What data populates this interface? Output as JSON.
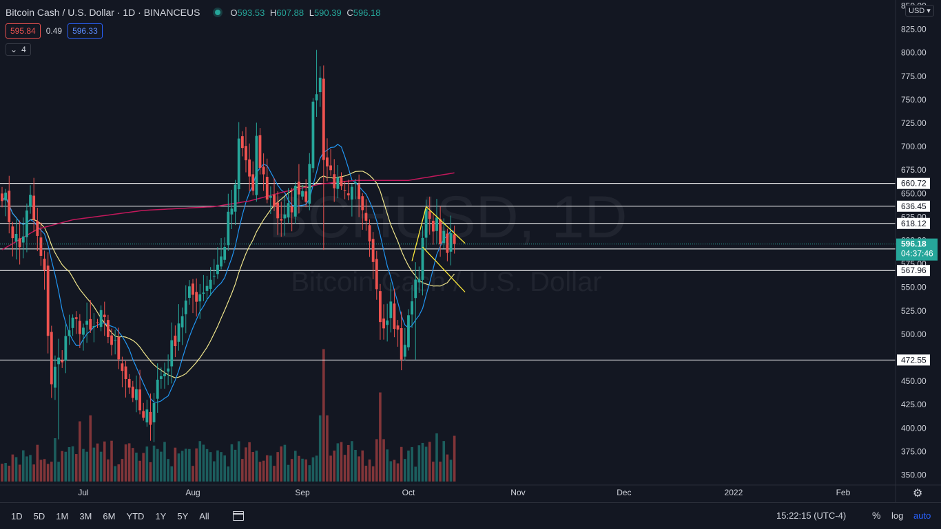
{
  "header": {
    "symbol_title": "Bitcoin Cash / U.S. Dollar · 1D · BINANCEUS",
    "ohlc": [
      {
        "label": "O",
        "value": "593.53"
      },
      {
        "label": "H",
        "value": "607.88"
      },
      {
        "label": "L",
        "value": "590.39"
      },
      {
        "label": "C",
        "value": "596.18"
      }
    ],
    "bid": "595.84",
    "spread": "0.49",
    "ask": "596.33",
    "indicators_count": "4",
    "currency": "USD"
  },
  "watermark": {
    "symbol": "BCHUSD, 1D",
    "name": "Bitcoin Cash / U.S. Dollar"
  },
  "bottom_bar": {
    "timeframes": [
      "1D",
      "5D",
      "1M",
      "3M",
      "6M",
      "YTD",
      "1Y",
      "5Y",
      "All"
    ],
    "clock": "15:22:15 (UTC-4)",
    "percent": "%",
    "log": "log",
    "auto": "auto"
  },
  "colors": {
    "background": "#131722",
    "up": "#26a69a",
    "down": "#ef5350",
    "ma_fast": "#2196f3",
    "ma_slow": "#f0e68c",
    "ma_200": "#c2185b",
    "pattern": "#ffeb3b",
    "level_line": "#ffffff"
  },
  "chart_data": {
    "type": "candlestick",
    "title": "Bitcoin Cash / U.S. Dollar",
    "interval": "1D",
    "exchange": "BINANCEUS",
    "y_axis": {
      "ticks": [
        850,
        825,
        800,
        775,
        750,
        725,
        700,
        675,
        650,
        625,
        600,
        575,
        550,
        525,
        500,
        475,
        450,
        425,
        400,
        375,
        350
      ],
      "ylim": [
        340,
        850
      ],
      "labels": [
        "850.00",
        "825.00",
        "800.00",
        "775.00",
        "750.00",
        "725.00",
        "700.00",
        "675.00",
        "650.00",
        "625.00",
        "600.00",
        "575.00",
        "550.00",
        "525.00",
        "500.00",
        "475.00",
        "450.00",
        "425.00",
        "400.00",
        "375.00",
        "350.00"
      ]
    },
    "x_axis": {
      "labels": [
        "Jul",
        "Aug",
        "Sep",
        "Oct",
        "Nov",
        "Dec",
        "2022",
        "Feb"
      ],
      "label_days": [
        23,
        54,
        85,
        115,
        146,
        176,
        207,
        238
      ]
    },
    "horizontal_levels": [
      660.72,
      636.45,
      618.12,
      590.93,
      567.96,
      472.55
    ],
    "current_price": {
      "value": "596.18",
      "countdown": "04:37:46"
    },
    "price_anchors": [
      [
        0,
        655
      ],
      [
        3,
        610
      ],
      [
        5,
        592
      ],
      [
        8,
        642
      ],
      [
        10,
        600
      ],
      [
        12,
        560
      ],
      [
        14,
        450
      ],
      [
        16,
        470
      ],
      [
        19,
        505
      ],
      [
        22,
        510
      ],
      [
        25,
        500
      ],
      [
        28,
        515
      ],
      [
        31,
        493
      ],
      [
        34,
        470
      ],
      [
        36,
        445
      ],
      [
        38,
        430
      ],
      [
        40,
        405
      ],
      [
        42,
        415
      ],
      [
        44,
        450
      ],
      [
        46,
        460
      ],
      [
        48,
        483
      ],
      [
        50,
        515
      ],
      [
        53,
        540
      ],
      [
        56,
        545
      ],
      [
        59,
        560
      ],
      [
        62,
        580
      ],
      [
        64,
        620
      ],
      [
        66,
        650
      ],
      [
        67,
        705
      ],
      [
        69,
        685
      ],
      [
        70,
        668
      ],
      [
        71,
        648
      ],
      [
        72,
        700
      ],
      [
        73,
        680
      ],
      [
        75,
        650
      ],
      [
        77,
        640
      ],
      [
        78,
        628
      ],
      [
        80,
        620
      ],
      [
        82,
        640
      ],
      [
        84,
        660
      ],
      [
        86,
        650
      ],
      [
        88,
        735
      ],
      [
        89,
        763
      ],
      [
        90,
        770
      ],
      [
        91,
        695
      ],
      [
        92,
        680
      ],
      [
        94,
        665
      ],
      [
        96,
        648
      ],
      [
        98,
        638
      ],
      [
        100,
        655
      ],
      [
        102,
        645
      ],
      [
        104,
        610
      ],
      [
        105,
        590
      ],
      [
        106,
        545
      ],
      [
        107,
        520
      ],
      [
        108,
        500
      ],
      [
        110,
        530
      ],
      [
        112,
        495
      ],
      [
        113,
        480
      ],
      [
        114,
        492
      ],
      [
        115,
        510
      ],
      [
        116,
        545
      ],
      [
        118,
        572
      ],
      [
        119,
        592
      ],
      [
        120,
        630
      ],
      [
        121,
        612
      ],
      [
        122,
        622
      ],
      [
        123,
        614
      ],
      [
        124,
        604
      ],
      [
        125,
        598
      ],
      [
        126,
        585
      ],
      [
        127,
        603
      ],
      [
        128,
        596
      ]
    ],
    "volume_note": "daily volume bars, colored by candle direction",
    "volume_peaks": [
      [
        91,
        100
      ],
      [
        107,
        64
      ],
      [
        22,
        40
      ],
      [
        25,
        45
      ],
      [
        15,
        26
      ],
      [
        123,
        30
      ],
      [
        128,
        28
      ]
    ],
    "moving_averages": [
      {
        "kind": "ma_fast",
        "period": 9
      },
      {
        "kind": "ma_slow",
        "period": 20
      },
      {
        "kind": "ma_200",
        "anchors": [
          [
            0,
            590
          ],
          [
            10,
            612
          ],
          [
            20,
            622
          ],
          [
            40,
            632
          ],
          [
            60,
            636
          ],
          [
            70,
            642
          ],
          [
            80,
            652
          ],
          [
            90,
            660
          ],
          [
            100,
            664
          ],
          [
            115,
            664
          ],
          [
            128,
            672
          ]
        ]
      }
    ],
    "pattern": {
      "kind": "bear flag",
      "pole": [
        [
          116,
          578
        ],
        [
          120,
          636
        ]
      ],
      "upper": [
        [
          120,
          636
        ],
        [
          131,
          597
        ]
      ],
      "lower": [
        [
          119,
          593
        ],
        [
          131,
          545
        ]
      ]
    },
    "grid": false
  }
}
